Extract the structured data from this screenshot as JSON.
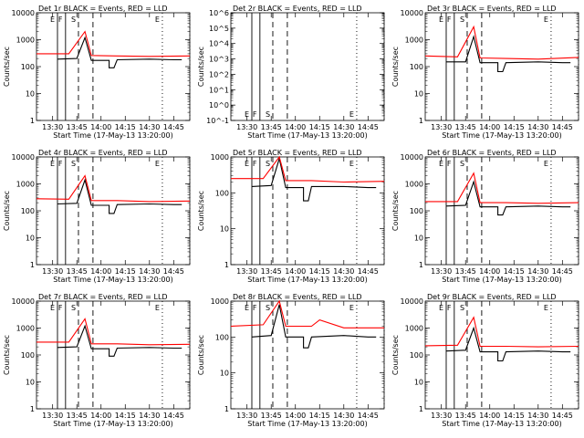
{
  "shared": {
    "xtick_labels": [
      "13:30",
      "13:45",
      "14:00",
      "14:15",
      "14:30",
      "14:45"
    ],
    "xlabel": "Start Time (17-May-13 13:20:00)",
    "ylabel": "Counts/sec",
    "ytick_labels_main": [
      "1",
      "10",
      "100",
      "1000",
      "10000"
    ],
    "ytick_labels_det2": [
      "10^-1",
      "10^0",
      "10^1",
      "10^2",
      "10^3",
      "10^4",
      "10^5",
      "10^6"
    ],
    "markers": [
      "E",
      "F",
      "S",
      "E"
    ],
    "colors": {
      "events": "#000000",
      "lld": "#ff0000"
    }
  },
  "chart_data": [
    {
      "type": "line",
      "title": "Det 1r  BLACK = Events, RED = LLD",
      "yscale": "log",
      "ylim": [
        1,
        10000
      ],
      "xlim": [
        "13:20",
        "14:55"
      ],
      "series": [
        {
          "name": "Events",
          "color": "#000000",
          "points": [
            [
              "13:33",
              190
            ],
            [
              "13:45",
              200
            ],
            [
              "13:50",
              1200
            ],
            [
              "13:54",
              170
            ],
            [
              "14:05",
              170
            ],
            [
              "14:05",
              90
            ],
            [
              "14:08",
              90
            ],
            [
              "14:10",
              180
            ],
            [
              "14:30",
              190
            ],
            [
              "14:45",
              180
            ],
            [
              "14:50",
              180
            ]
          ]
        },
        {
          "name": "LLD",
          "color": "#ff0000",
          "points": [
            [
              "13:20",
              300
            ],
            [
              "13:40",
              300
            ],
            [
              "13:50",
              2000
            ],
            [
              "13:54",
              260
            ],
            [
              "14:10",
              250
            ],
            [
              "14:30",
              240
            ],
            [
              "14:55",
              250
            ]
          ]
        }
      ]
    },
    {
      "type": "line",
      "title": "Det 2r  BLACK = Events, RED = LLD",
      "yscale": "log",
      "ylim": [
        0.1,
        1000000
      ],
      "xlim": [
        "13:20",
        "14:55"
      ],
      "series": []
    },
    {
      "type": "line",
      "title": "Det 3r  BLACK = Events, RED = LLD",
      "yscale": "log",
      "ylim": [
        1,
        10000
      ],
      "xlim": [
        "13:20",
        "14:55"
      ],
      "series": [
        {
          "name": "Events",
          "color": "#000000",
          "points": [
            [
              "13:33",
              150
            ],
            [
              "13:45",
              150
            ],
            [
              "13:50",
              1300
            ],
            [
              "13:54",
              140
            ],
            [
              "14:05",
              140
            ],
            [
              "14:05",
              65
            ],
            [
              "14:08",
              65
            ],
            [
              "14:10",
              140
            ],
            [
              "14:30",
              150
            ],
            [
              "14:45",
              140
            ],
            [
              "14:50",
              140
            ]
          ]
        },
        {
          "name": "LLD",
          "color": "#ff0000",
          "points": [
            [
              "13:20",
              250
            ],
            [
              "13:40",
              230
            ],
            [
              "13:50",
              3000
            ],
            [
              "13:54",
              210
            ],
            [
              "14:10",
              200
            ],
            [
              "14:30",
              190
            ],
            [
              "14:55",
              220
            ]
          ]
        }
      ]
    },
    {
      "type": "line",
      "title": "Det 4r  BLACK = Events, RED = LLD",
      "yscale": "log",
      "ylim": [
        1,
        10000
      ],
      "xlim": [
        "13:20",
        "14:55"
      ],
      "series": [
        {
          "name": "Events",
          "color": "#000000",
          "points": [
            [
              "13:33",
              180
            ],
            [
              "13:45",
              190
            ],
            [
              "13:50",
              1400
            ],
            [
              "13:54",
              160
            ],
            [
              "14:05",
              160
            ],
            [
              "14:05",
              80
            ],
            [
              "14:08",
              80
            ],
            [
              "14:10",
              170
            ],
            [
              "14:30",
              180
            ],
            [
              "14:45",
              170
            ],
            [
              "14:50",
              170
            ]
          ]
        },
        {
          "name": "LLD",
          "color": "#ff0000",
          "points": [
            [
              "13:20",
              280
            ],
            [
              "13:40",
              270
            ],
            [
              "13:50",
              2000
            ],
            [
              "13:54",
              240
            ],
            [
              "14:10",
              240
            ],
            [
              "14:30",
              220
            ],
            [
              "14:55",
              230
            ]
          ]
        }
      ]
    },
    {
      "type": "line",
      "title": "Det 5r  BLACK = Events, RED = LLD",
      "yscale": "log",
      "ylim": [
        1,
        1000
      ],
      "xlim": [
        "13:20",
        "14:55"
      ],
      "series": [
        {
          "name": "Events",
          "color": "#000000",
          "points": [
            [
              "13:33",
              150
            ],
            [
              "13:45",
              160
            ],
            [
              "13:50",
              900
            ],
            [
              "13:54",
              140
            ],
            [
              "14:05",
              140
            ],
            [
              "14:05",
              60
            ],
            [
              "14:08",
              60
            ],
            [
              "14:10",
              150
            ],
            [
              "14:30",
              150
            ],
            [
              "14:45",
              140
            ],
            [
              "14:50",
              140
            ]
          ]
        },
        {
          "name": "LLD",
          "color": "#ff0000",
          "points": [
            [
              "13:20",
              250
            ],
            [
              "13:40",
              250
            ],
            [
              "13:50",
              1000
            ],
            [
              "13:54",
              220
            ],
            [
              "14:10",
              220
            ],
            [
              "14:30",
              200
            ],
            [
              "14:55",
              210
            ]
          ]
        }
      ]
    },
    {
      "type": "line",
      "title": "Det 6r  BLACK = Events, RED = LLD",
      "yscale": "log",
      "ylim": [
        1,
        10000
      ],
      "xlim": [
        "13:20",
        "14:55"
      ],
      "series": [
        {
          "name": "Events",
          "color": "#000000",
          "points": [
            [
              "13:33",
              150
            ],
            [
              "13:45",
              160
            ],
            [
              "13:50",
              1200
            ],
            [
              "13:54",
              140
            ],
            [
              "14:05",
              140
            ],
            [
              "14:05",
              70
            ],
            [
              "14:08",
              70
            ],
            [
              "14:10",
              140
            ],
            [
              "14:30",
              150
            ],
            [
              "14:45",
              140
            ],
            [
              "14:50",
              140
            ]
          ]
        },
        {
          "name": "LLD",
          "color": "#ff0000",
          "points": [
            [
              "13:20",
              220
            ],
            [
              "13:40",
              220
            ],
            [
              "13:50",
              2500
            ],
            [
              "13:54",
              200
            ],
            [
              "14:10",
              200
            ],
            [
              "14:30",
              190
            ],
            [
              "14:55",
              200
            ]
          ]
        }
      ]
    },
    {
      "type": "line",
      "title": "Det 7r  BLACK = Events, RED = LLD",
      "yscale": "log",
      "ylim": [
        1,
        10000
      ],
      "xlim": [
        "13:20",
        "14:55"
      ],
      "series": [
        {
          "name": "Events",
          "color": "#000000",
          "points": [
            [
              "13:33",
              190
            ],
            [
              "13:45",
              200
            ],
            [
              "13:50",
              1200
            ],
            [
              "13:54",
              170
            ],
            [
              "14:05",
              170
            ],
            [
              "14:05",
              90
            ],
            [
              "14:08",
              90
            ],
            [
              "14:10",
              180
            ],
            [
              "14:30",
              190
            ],
            [
              "14:45",
              180
            ],
            [
              "14:50",
              180
            ]
          ]
        },
        {
          "name": "LLD",
          "color": "#ff0000",
          "points": [
            [
              "13:20",
              300
            ],
            [
              "13:40",
              300
            ],
            [
              "13:50",
              2200
            ],
            [
              "13:54",
              260
            ],
            [
              "14:10",
              260
            ],
            [
              "14:30",
              240
            ],
            [
              "14:55",
              250
            ]
          ]
        }
      ]
    },
    {
      "type": "line",
      "title": "Det 8r  BLACK = Events, RED = LLD",
      "yscale": "log",
      "ylim": [
        1,
        1000
      ],
      "xlim": [
        "13:20",
        "14:55"
      ],
      "series": [
        {
          "name": "Events",
          "color": "#000000",
          "points": [
            [
              "13:33",
              100
            ],
            [
              "13:45",
              110
            ],
            [
              "13:50",
              800
            ],
            [
              "13:54",
              100
            ],
            [
              "14:05",
              100
            ],
            [
              "14:05",
              50
            ],
            [
              "14:08",
              50
            ],
            [
              "14:10",
              100
            ],
            [
              "14:30",
              110
            ],
            [
              "14:45",
              100
            ],
            [
              "14:50",
              100
            ]
          ]
        },
        {
          "name": "LLD",
          "color": "#ff0000",
          "points": [
            [
              "13:20",
              200
            ],
            [
              "13:40",
              220
            ],
            [
              "13:50",
              1000
            ],
            [
              "13:54",
              200
            ],
            [
              "14:10",
              200
            ],
            [
              "14:15",
              300
            ],
            [
              "14:30",
              180
            ],
            [
              "14:55",
              180
            ]
          ]
        }
      ]
    },
    {
      "type": "line",
      "title": "Det 9r  BLACK = Events, RED = LLD",
      "yscale": "log",
      "ylim": [
        1,
        10000
      ],
      "xlim": [
        "13:20",
        "14:55"
      ],
      "series": [
        {
          "name": "Events",
          "color": "#000000",
          "points": [
            [
              "13:33",
              140
            ],
            [
              "13:45",
              150
            ],
            [
              "13:50",
              1000
            ],
            [
              "13:54",
              130
            ],
            [
              "14:05",
              130
            ],
            [
              "14:05",
              60
            ],
            [
              "14:08",
              60
            ],
            [
              "14:10",
              130
            ],
            [
              "14:30",
              140
            ],
            [
              "14:45",
              130
            ],
            [
              "14:50",
              130
            ]
          ]
        },
        {
          "name": "LLD",
          "color": "#ff0000",
          "points": [
            [
              "13:20",
              220
            ],
            [
              "13:40",
              230
            ],
            [
              "13:50",
              2500
            ],
            [
              "13:54",
              210
            ],
            [
              "14:10",
              210
            ],
            [
              "14:30",
              200
            ],
            [
              "14:55",
              210
            ]
          ]
        }
      ]
    }
  ]
}
